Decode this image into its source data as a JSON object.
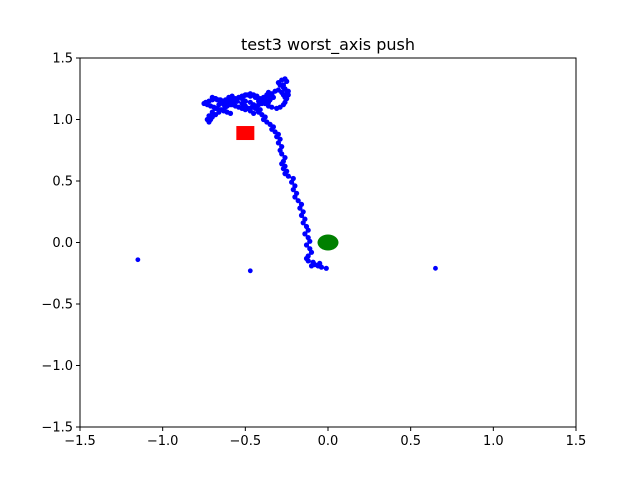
{
  "chart_data": {
    "type": "scatter",
    "title": "test3 worst_axis push",
    "xlabel": "",
    "ylabel": "",
    "xlim": [
      -1.5,
      1.5
    ],
    "ylim": [
      -1.5,
      1.5
    ],
    "xticks": [
      "−1.5",
      "−1.0",
      "−0.5",
      "0.0",
      "0.5",
      "1.0",
      "1.5"
    ],
    "yticks": [
      "−1.5",
      "−1.0",
      "−0.5",
      "0.0",
      "0.5",
      "1.0",
      "1.5"
    ],
    "xtick_values": [
      -1.5,
      -1.0,
      -0.5,
      0.0,
      0.5,
      1.0,
      1.5
    ],
    "ytick_values": [
      -1.5,
      -1.0,
      -0.5,
      0.0,
      0.5,
      1.0,
      1.5
    ],
    "grid": false,
    "colors": {
      "path": "#0000ff",
      "target": "#ff0000",
      "object": "#008000"
    },
    "path": {
      "x": [
        -0.01,
        -0.04,
        -0.06,
        -0.05,
        -0.08,
        -0.1,
        -0.09,
        -0.12,
        -0.13,
        -0.12,
        -0.1,
        -0.11,
        -0.13,
        -0.11,
        -0.12,
        -0.14,
        -0.12,
        -0.13,
        -0.15,
        -0.14,
        -0.16,
        -0.15,
        -0.17,
        -0.16,
        -0.18,
        -0.2,
        -0.19,
        -0.21,
        -0.2,
        -0.22,
        -0.21,
        -0.24,
        -0.26,
        -0.25,
        -0.27,
        -0.26,
        -0.28,
        -0.27,
        -0.26,
        -0.28,
        -0.29,
        -0.28,
        -0.3,
        -0.29,
        -0.31,
        -0.3,
        -0.32,
        -0.34,
        -0.33,
        -0.35,
        -0.37,
        -0.39,
        -0.38,
        -0.4,
        -0.42,
        -0.41,
        -0.43,
        -0.45,
        -0.47,
        -0.5,
        -0.52,
        -0.51,
        -0.49,
        -0.47,
        -0.45,
        -0.43,
        -0.41,
        -0.39,
        -0.38,
        -0.36,
        -0.34,
        -0.31,
        -0.29,
        -0.27,
        -0.26,
        -0.25,
        -0.24,
        -0.25,
        -0.27,
        -0.29,
        -0.3,
        -0.28,
        -0.26,
        -0.25,
        -0.27,
        -0.26,
        -0.24,
        -0.25,
        -0.26,
        -0.27,
        -0.28,
        -0.3,
        -0.32,
        -0.34,
        -0.36,
        -0.38,
        -0.4,
        -0.42,
        -0.41,
        -0.43,
        -0.44,
        -0.42,
        -0.45,
        -0.47,
        -0.49,
        -0.5,
        -0.52,
        -0.55,
        -0.58,
        -0.6,
        -0.62,
        -0.64,
        -0.66,
        -0.68,
        -0.7,
        -0.71,
        -0.72,
        -0.73,
        -0.72,
        -0.7,
        -0.68,
        -0.66,
        -0.64,
        -0.62,
        -0.6,
        -0.58,
        -0.56,
        -0.55,
        -0.57,
        -0.59,
        -0.61,
        -0.63,
        -0.65,
        -0.67,
        -0.69,
        -0.7,
        -0.68,
        -0.65,
        -0.62,
        -0.6,
        -0.57,
        -0.54,
        -0.52,
        -0.5,
        -0.47,
        -0.44,
        -0.42,
        -0.4,
        -0.38,
        -0.36,
        -0.38,
        -0.4,
        -0.41,
        -0.39,
        -0.37,
        -0.36,
        -0.34,
        -0.33,
        -0.35,
        -0.37,
        -0.39,
        -0.4,
        -0.42,
        -0.44,
        -0.46,
        -0.48,
        -0.5,
        -0.52,
        -0.54,
        -0.56,
        -0.58,
        -0.6,
        -0.62,
        -0.64,
        -0.66,
        -0.68,
        -0.7,
        -0.72,
        -0.74,
        -0.75,
        -0.73,
        -0.71,
        -0.69,
        -0.67,
        -0.65,
        -0.63,
        -0.61,
        -0.59
      ],
      "y": [
        -0.21,
        -0.2,
        -0.19,
        -0.17,
        -0.18,
        -0.19,
        -0.16,
        -0.15,
        -0.13,
        -0.11,
        -0.08,
        -0.05,
        -0.02,
        0.01,
        0.04,
        0.07,
        0.1,
        0.13,
        0.16,
        0.19,
        0.22,
        0.25,
        0.28,
        0.31,
        0.34,
        0.37,
        0.4,
        0.43,
        0.46,
        0.49,
        0.52,
        0.54,
        0.56,
        0.58,
        0.6,
        0.62,
        0.64,
        0.66,
        0.69,
        0.72,
        0.75,
        0.78,
        0.81,
        0.84,
        0.86,
        0.88,
        0.9,
        0.92,
        0.94,
        0.96,
        0.98,
        1.0,
        1.02,
        1.04,
        1.06,
        1.08,
        1.1,
        1.12,
        1.14,
        1.15,
        1.17,
        1.19,
        1.2,
        1.21,
        1.2,
        1.19,
        1.17,
        1.15,
        1.13,
        1.11,
        1.1,
        1.09,
        1.1,
        1.12,
        1.14,
        1.17,
        1.2,
        1.23,
        1.26,
        1.28,
        1.3,
        1.32,
        1.33,
        1.31,
        1.28,
        1.25,
        1.23,
        1.2,
        1.18,
        1.2,
        1.22,
        1.24,
        1.23,
        1.21,
        1.19,
        1.17,
        1.16,
        1.15,
        1.13,
        1.11,
        1.09,
        1.07,
        1.05,
        1.07,
        1.09,
        1.11,
        1.13,
        1.15,
        1.14,
        1.12,
        1.1,
        1.08,
        1.06,
        1.04,
        1.02,
        1.0,
        0.98,
        1.0,
        1.03,
        1.06,
        1.09,
        1.12,
        1.14,
        1.16,
        1.18,
        1.19,
        1.17,
        1.15,
        1.13,
        1.12,
        1.11,
        1.12,
        1.14,
        1.16,
        1.17,
        1.18,
        1.17,
        1.16,
        1.15,
        1.16,
        1.17,
        1.18,
        1.19,
        1.2,
        1.19,
        1.18,
        1.17,
        1.16,
        1.15,
        1.14,
        1.13,
        1.14,
        1.16,
        1.18,
        1.2,
        1.22,
        1.2,
        1.18,
        1.16,
        1.15,
        1.14,
        1.13,
        1.12,
        1.11,
        1.1,
        1.09,
        1.08,
        1.09,
        1.1,
        1.11,
        1.12,
        1.13,
        1.14,
        1.15,
        1.16,
        1.17,
        1.16,
        1.15,
        1.14,
        1.13,
        1.12,
        1.11,
        1.1,
        1.09,
        1.08,
        1.07,
        1.06,
        1.05
      ]
    },
    "sparse_points": [
      {
        "x": -1.15,
        "y": -0.14
      },
      {
        "x": -0.47,
        "y": -0.23
      },
      {
        "x": 0.65,
        "y": -0.21
      }
    ],
    "target": {
      "x": -0.5,
      "y": 0.89,
      "marker": "square"
    },
    "object": {
      "x": 0.0,
      "y": 0.0,
      "marker": "ellipse"
    }
  }
}
